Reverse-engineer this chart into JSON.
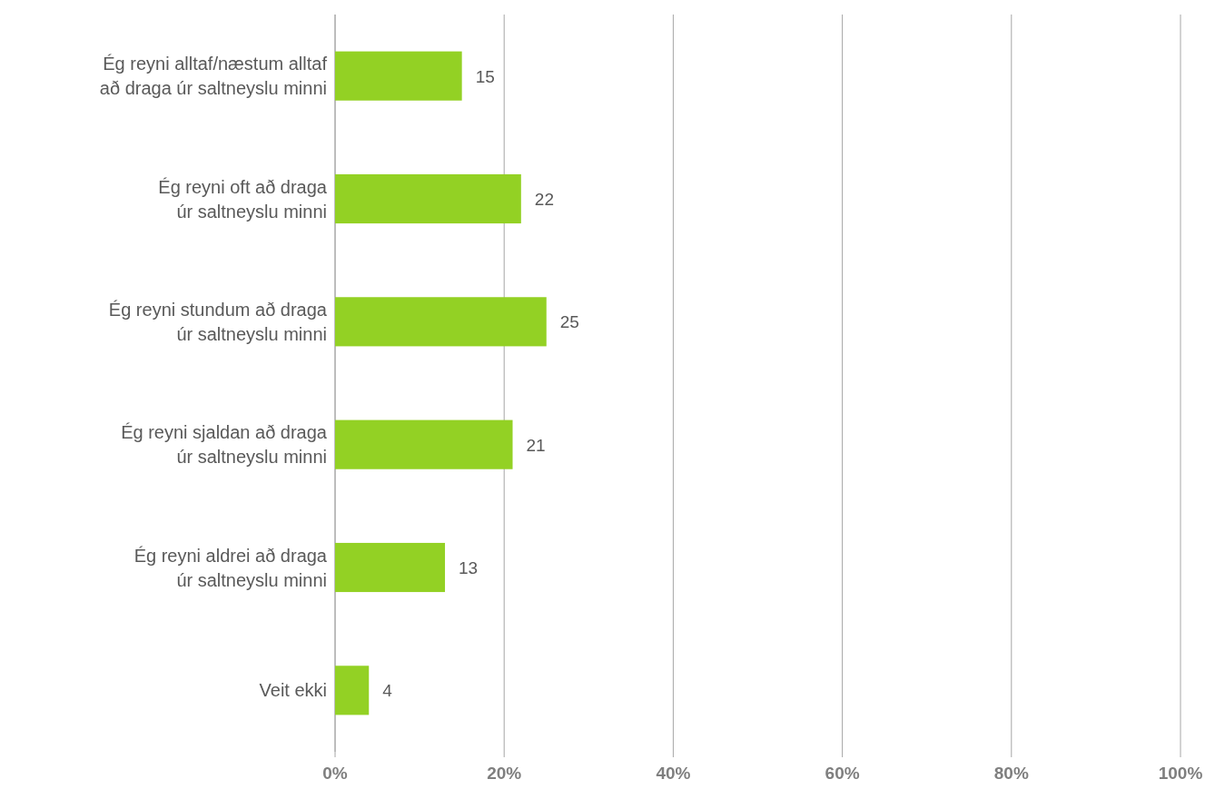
{
  "chart_data": {
    "type": "bar",
    "orientation": "horizontal",
    "categories": [
      "Ég reyni alltaf/næstum alltaf að draga úr saltneyslu minni",
      "Ég reyni oft að draga úr saltneyslu minni",
      "Ég reyni stundum að draga úr saltneyslu minni",
      "Ég reyni sjaldan að draga úr saltneyslu minni",
      "Ég reyni aldrei að draga úr saltneyslu minni",
      "Veit ekki"
    ],
    "values": [
      15,
      22,
      25,
      21,
      13,
      4
    ],
    "color": "#93d124",
    "xlim": [
      0,
      100
    ],
    "xticks": [
      {
        "value": 0,
        "label": "0%"
      },
      {
        "value": 20,
        "label": "20%"
      },
      {
        "value": 40,
        "label": "40%"
      },
      {
        "value": 60,
        "label": "60%"
      },
      {
        "value": 80,
        "label": "80%"
      },
      {
        "value": 100,
        "label": "100%"
      }
    ],
    "grid": "x",
    "data_labels": true
  }
}
